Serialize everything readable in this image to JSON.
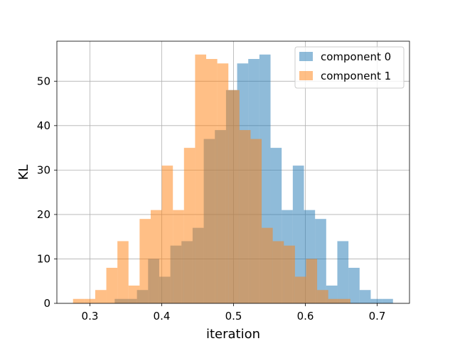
{
  "chart_data": {
    "type": "bar",
    "histogram": true,
    "title": "",
    "xlabel": "iteration",
    "ylabel": "KL",
    "xlim": [
      0.254,
      0.745
    ],
    "ylim": [
      0,
      59
    ],
    "xticks": [
      0.3,
      0.4,
      0.5,
      0.6,
      0.7
    ],
    "xtick_labels": [
      "0.3",
      "0.4",
      "0.5",
      "0.6",
      "0.7"
    ],
    "yticks": [
      0,
      10,
      20,
      30,
      40,
      50
    ],
    "ytick_labels": [
      "0",
      "10",
      "20",
      "30",
      "40",
      "50"
    ],
    "grid": true,
    "legend": {
      "placement": "top-right"
    },
    "alpha": 0.5,
    "series": [
      {
        "name": "component 0",
        "color": "#1f77b4",
        "bin_start": 0.3345,
        "bin_width": 0.0155,
        "values": [
          1,
          1,
          3,
          10,
          6,
          13,
          14,
          17,
          37,
          39,
          48,
          54,
          55,
          56,
          35,
          21,
          31,
          21,
          19,
          4,
          14,
          8,
          3,
          1,
          1
        ]
      },
      {
        "name": "component 1",
        "color": "#ff7f0e",
        "bin_start": 0.2765,
        "bin_width": 0.01545,
        "values": [
          1,
          1,
          3,
          8,
          14,
          4,
          19,
          21,
          31,
          21,
          35,
          56,
          55,
          54,
          48,
          39,
          37,
          17,
          14,
          13,
          6,
          10,
          3,
          1,
          1
        ]
      }
    ]
  }
}
